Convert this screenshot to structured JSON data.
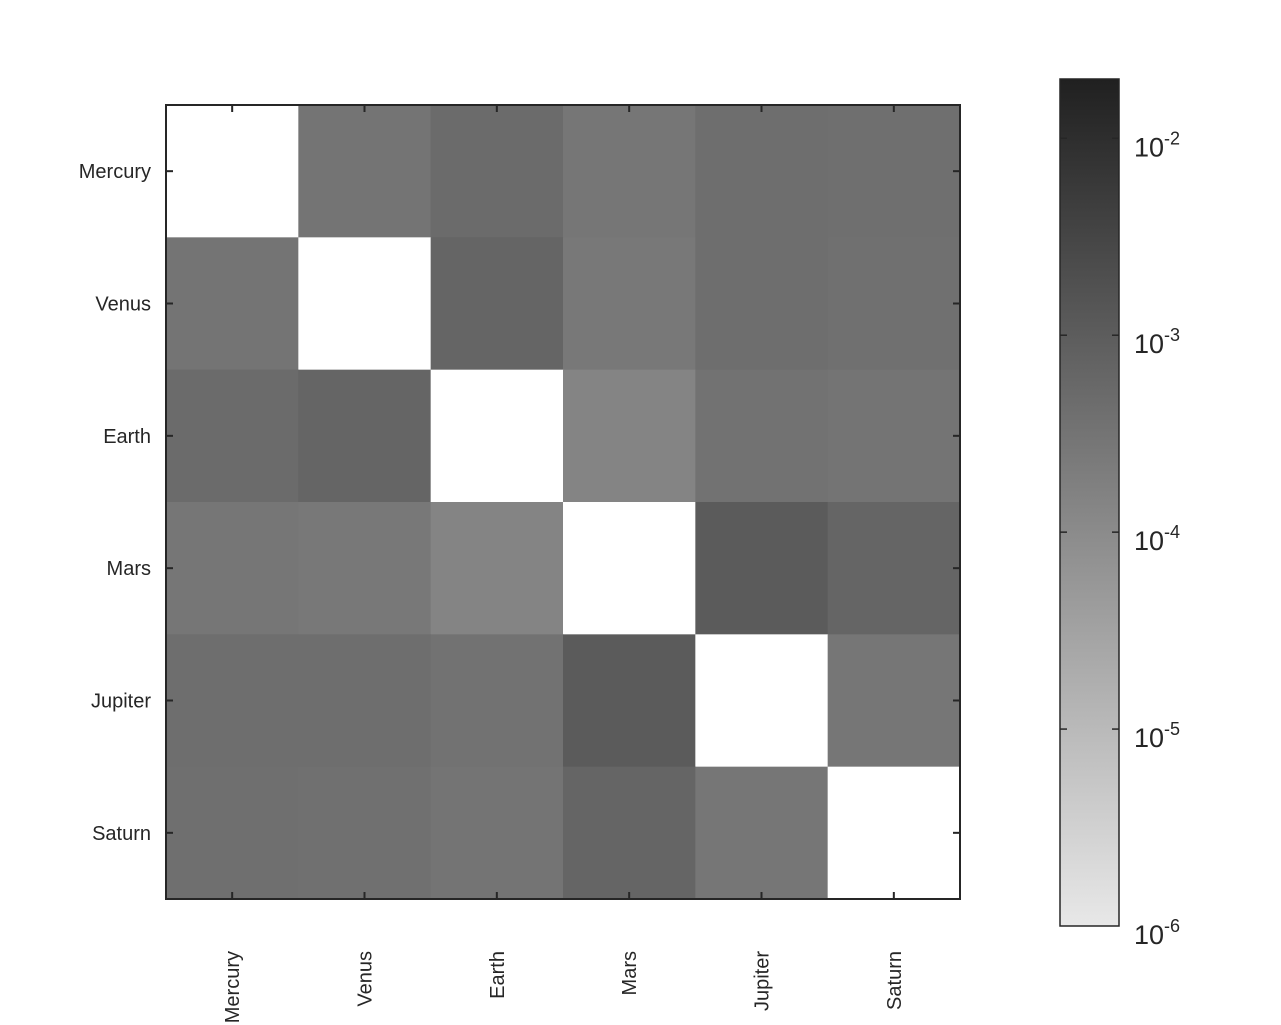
{
  "chart_data": {
    "type": "heatmap",
    "title": "",
    "xlabel": "",
    "ylabel": "",
    "categories_x": [
      "Mercury",
      "Venus",
      "Earth",
      "Mars",
      "Jupiter",
      "Saturn"
    ],
    "categories_y": [
      "Mercury",
      "Venus",
      "Earth",
      "Mars",
      "Jupiter",
      "Saturn"
    ],
    "values": [
      [
        null,
        0.00032,
        0.00048,
        0.00028,
        0.00042,
        0.0004
      ],
      [
        0.00032,
        null,
        0.00065,
        0.00026,
        0.00042,
        0.00038
      ],
      [
        0.00048,
        0.00065,
        null,
        0.00014,
        0.00035,
        0.00032
      ],
      [
        0.00028,
        0.00026,
        0.00014,
        null,
        0.0011,
        0.00065
      ],
      [
        0.00042,
        0.00042,
        0.00035,
        0.0011,
        null,
        0.00028
      ],
      [
        0.0004,
        0.00038,
        0.00032,
        0.00065,
        0.00028,
        null
      ]
    ],
    "scale": "log",
    "colormap": "gray (light = low, dark = high)",
    "diagonal_color": "#ffffff",
    "colorbar": {
      "range": [
        1e-06,
        0.02
      ],
      "ticks": [
        {
          "base": "10",
          "exp": "-2",
          "value": 0.01
        },
        {
          "base": "10",
          "exp": "-3",
          "value": 0.001
        },
        {
          "base": "10",
          "exp": "-4",
          "value": 0.0001
        },
        {
          "base": "10",
          "exp": "-5",
          "value": 1e-05
        },
        {
          "base": "10",
          "exp": "-6",
          "value": 1e-06
        }
      ]
    },
    "grid": false
  }
}
